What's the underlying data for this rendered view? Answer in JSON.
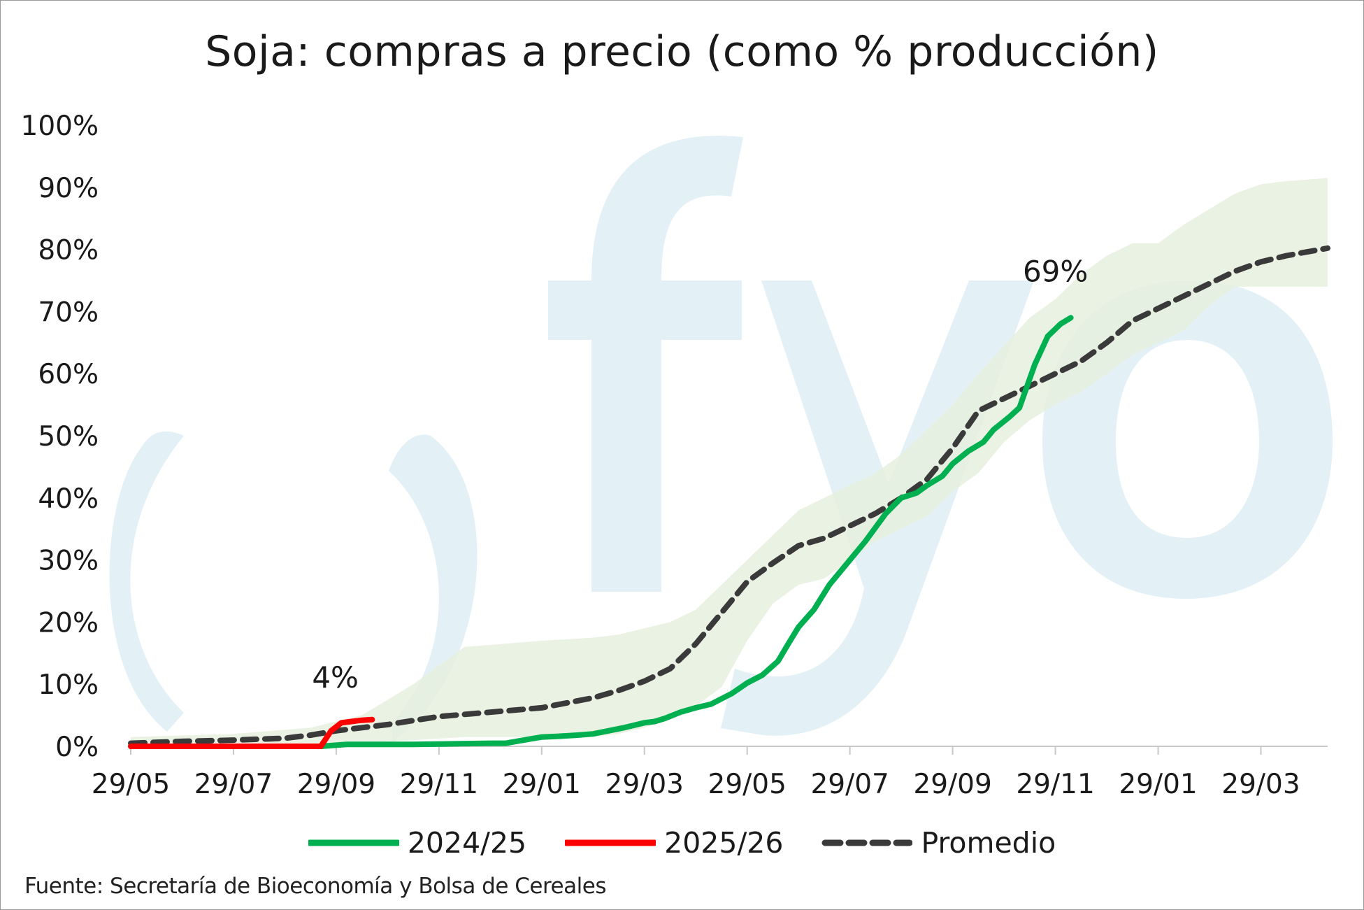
{
  "chart_data": {
    "type": "line",
    "title": "Soja: compras a precio (como % producción)",
    "xlabel": "",
    "ylabel": "",
    "x_tick_labels": [
      "29/05",
      "29/07",
      "29/09",
      "29/11",
      "29/01",
      "29/03",
      "29/05",
      "29/07",
      "29/09",
      "29/11",
      "29/01",
      "29/03"
    ],
    "x_tick_months": [
      0,
      2,
      4,
      6,
      8,
      10,
      12,
      14,
      16,
      18,
      20,
      22
    ],
    "x_unit": "months since first 29/05 tick",
    "y_tick_labels": [
      "0%",
      "10%",
      "20%",
      "30%",
      "40%",
      "50%",
      "60%",
      "70%",
      "80%",
      "90%",
      "100%"
    ],
    "ylim": [
      0,
      100
    ],
    "xlim": [
      0,
      23.3
    ],
    "grid": false,
    "legend_position": "bottom",
    "series": [
      {
        "name": "2024/25",
        "color": "#00b050",
        "style": "solid",
        "x": [
          0,
          2,
          3.7,
          4.2,
          5,
          5.5,
          6.3,
          7,
          7.3,
          8,
          8.3,
          8.7,
          9,
          9.3,
          9.6,
          10,
          10.2,
          10.4,
          10.7,
          11,
          11.3,
          11.7,
          12,
          12.3,
          12.6,
          12.8,
          13,
          13.3,
          13.6,
          14,
          14.3,
          14.7,
          15,
          15.3,
          15.5,
          15.8,
          16,
          16.3,
          16.6,
          16.8,
          17.1,
          17.3,
          17.6
        ],
        "y": [
          0,
          0,
          0,
          0.3,
          0.3,
          0.3,
          0.4,
          0.5,
          0.5,
          1.5,
          1.6,
          1.8,
          2,
          2.5,
          3,
          3.8,
          4,
          4.5,
          5.5,
          6.2,
          6.8,
          8.5,
          10.2,
          11.5,
          13.7,
          16.5,
          19.2,
          22,
          26,
          30,
          33,
          37.5,
          40,
          40.8,
          42,
          43.5,
          45.5,
          47.5,
          49,
          51,
          53,
          54.5,
          61.5
        ]
      },
      {
        "name": "2025/26",
        "color": "#ff0000",
        "style": "solid",
        "x": [
          0,
          3.5,
          3.7,
          3.9,
          4.1,
          4.3,
          4.5,
          4.7
        ],
        "y": [
          0,
          0,
          0,
          2.5,
          3.8,
          4,
          4.2,
          4.3
        ]
      },
      {
        "name": "Promedio",
        "color": "#3a3a3a",
        "style": "dashed",
        "x": [
          0,
          1,
          2,
          3,
          3.5,
          4,
          5,
          6,
          7,
          8,
          9,
          9.5,
          10,
          10.5,
          11,
          11.5,
          12,
          12.5,
          13,
          13.5,
          14,
          14.5,
          15,
          15.5,
          16,
          16.5,
          17,
          17.5,
          18,
          18.5,
          19,
          19.5,
          20,
          20.5,
          21,
          21.5,
          22,
          22.5,
          23.3
        ],
        "y": [
          0.5,
          0.8,
          1,
          1.3,
          1.8,
          2.5,
          3.5,
          4.8,
          5.5,
          6.2,
          7.8,
          9,
          10.5,
          12.5,
          16.5,
          21.5,
          26.5,
          29.5,
          32.3,
          33.5,
          35.5,
          37.5,
          40,
          43,
          48,
          54,
          56,
          58,
          60,
          62,
          65,
          68.5,
          70.5,
          72.5,
          74.5,
          76.5,
          78,
          79,
          80.2
        ]
      }
    ],
    "band": {
      "color": "#e6f0de",
      "x": [
        0,
        2,
        3.5,
        4.5,
        5.5,
        6.5,
        8,
        9,
        9.5,
        10,
        10.5,
        11,
        11.5,
        12,
        12.5,
        13,
        13.5,
        14,
        14.5,
        15,
        15.5,
        16,
        16.5,
        17,
        17.5,
        18,
        18.5,
        19,
        19.5,
        20,
        20.5,
        21,
        21.5,
        22,
        22.5,
        23.3
      ],
      "upper": [
        1.5,
        2,
        3,
        5,
        10,
        16,
        17,
        17.5,
        18,
        19,
        20,
        22,
        26,
        30,
        34,
        38,
        40,
        42,
        44,
        47,
        51,
        55,
        60,
        64.5,
        69,
        72,
        76,
        79,
        81,
        81,
        84,
        86.5,
        89,
        90.5,
        91,
        91.5
      ],
      "lower": [
        0,
        0,
        0,
        0.5,
        1,
        1.5,
        1.5,
        1.5,
        2,
        3,
        4.5,
        6.5,
        9.5,
        17,
        23,
        26,
        27,
        30,
        33,
        35,
        37,
        41,
        44,
        49,
        52.5,
        55,
        57,
        60,
        63,
        65,
        67,
        71,
        74,
        74,
        74,
        74
      ]
    },
    "annotations": [
      {
        "text": "4%",
        "x": 4.5,
        "y": 4.3
      },
      {
        "text": "69%",
        "x": 16.8,
        "y": 69
      }
    ],
    "source": "Fuente: Secretaría de Bioeconomía y Bolsa de Cereales"
  }
}
